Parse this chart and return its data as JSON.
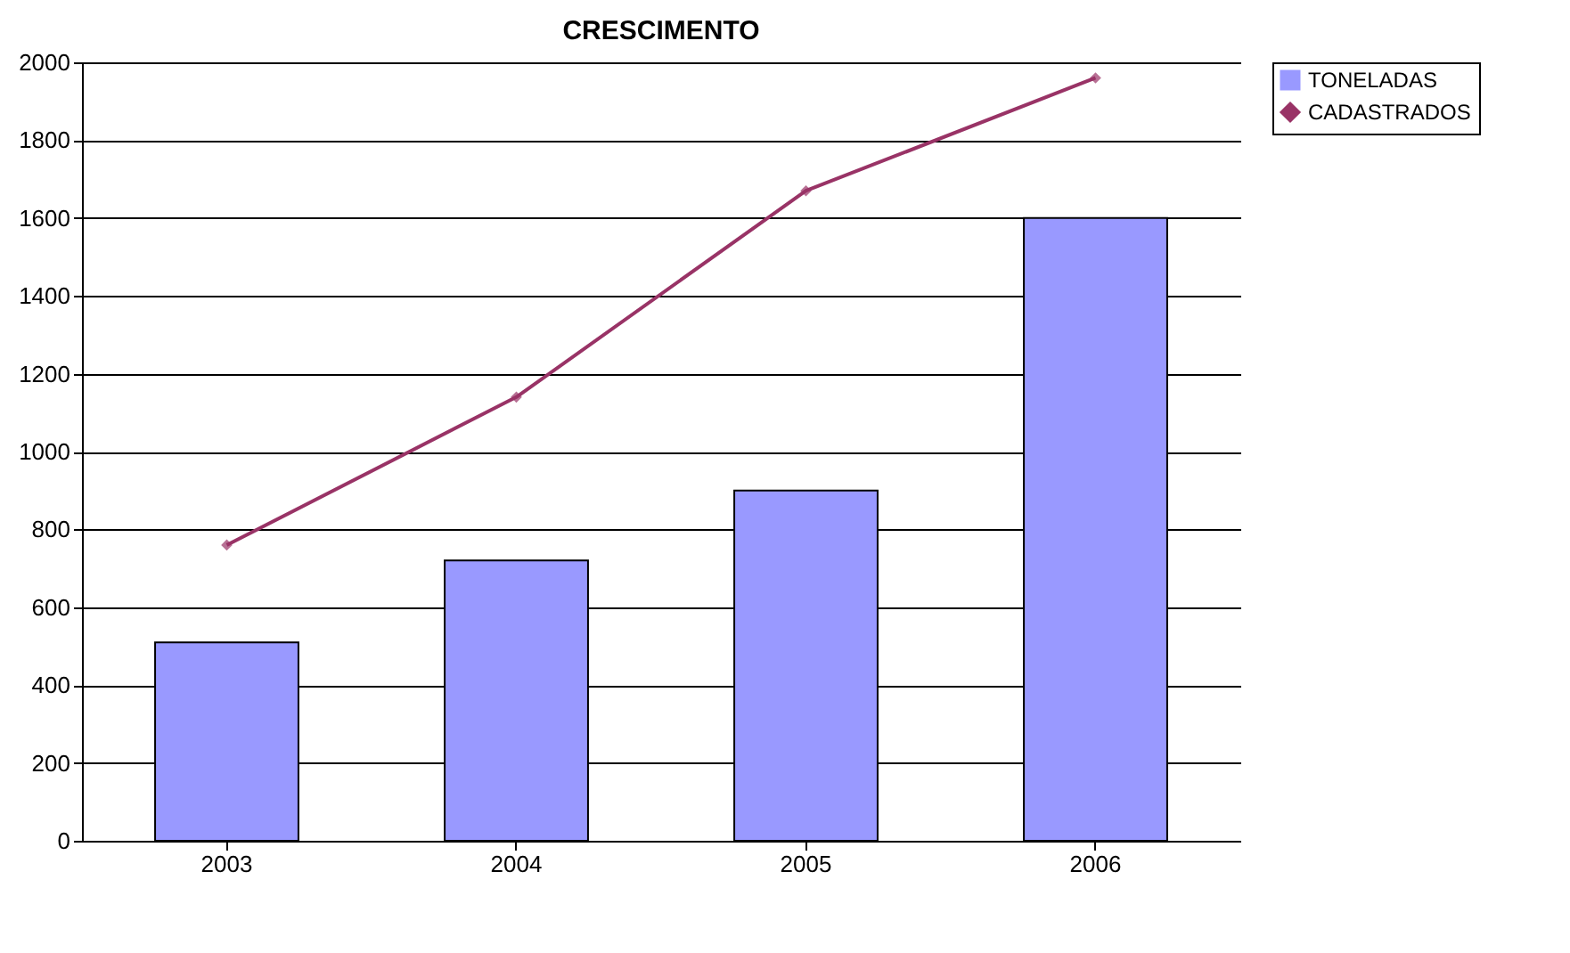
{
  "chart_data": {
    "type": "bar",
    "title": "CRESCIMENTO",
    "categories": [
      "2003",
      "2004",
      "2005",
      "2006"
    ],
    "series": [
      {
        "name": "TONELADAS",
        "color": "#9999ff",
        "values": [
          510,
          720,
          900,
          1600
        ]
      },
      {
        "name": "CADASTRADOS",
        "type": "line",
        "color": "#993366",
        "marker": "diamond",
        "values": [
          760,
          1140,
          1670,
          1960
        ]
      }
    ],
    "ylim": [
      0,
      2000
    ],
    "yticks": [
      0,
      200,
      400,
      600,
      800,
      1000,
      1200,
      1400,
      1600,
      1800,
      2000
    ],
    "grid": "y",
    "legend": "right"
  }
}
